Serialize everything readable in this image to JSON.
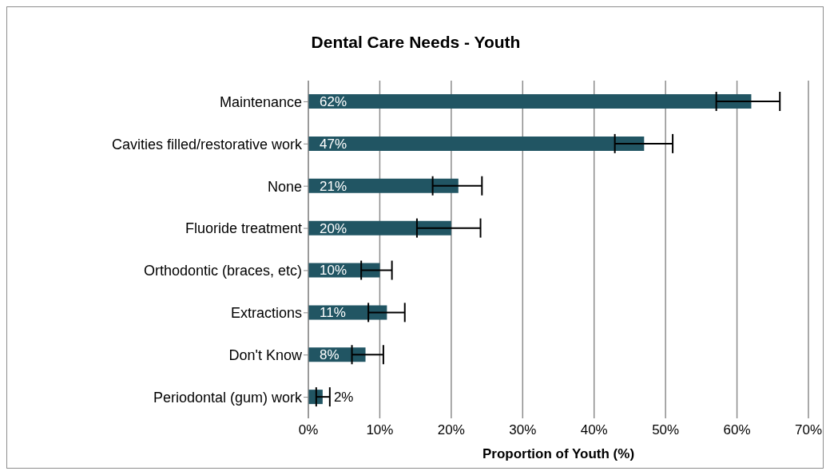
{
  "chart_data": {
    "type": "bar",
    "orientation": "horizontal",
    "title": "Dental Care Needs - Youth",
    "xlabel": "Proportion of Youth (%)",
    "categories": [
      "Maintenance",
      "Cavities filled/restorative work",
      "None",
      "Fluoride treatment",
      "Orthodontic (braces, etc)",
      "Extractions",
      "Don't Know",
      "Periodontal (gum) work"
    ],
    "values": [
      62,
      47,
      21,
      20,
      10,
      11,
      8,
      2
    ],
    "errors": [
      [
        57.1,
        66.0
      ],
      [
        42.9,
        51.0
      ],
      [
        17.4,
        24.3
      ],
      [
        15.2,
        24.1
      ],
      [
        7.4,
        11.7
      ],
      [
        8.4,
        13.5
      ],
      [
        6.1,
        10.5
      ],
      [
        1.1,
        3.0
      ]
    ],
    "value_labels": [
      "62%",
      "47%",
      "21%",
      "20%",
      "10%",
      "11%",
      "8%",
      "2%"
    ],
    "color": "#215563",
    "xlim": [
      0,
      70
    ],
    "xticks": [
      {
        "value": 0,
        "label": "0%"
      },
      {
        "value": 10,
        "label": "10%"
      },
      {
        "value": 20,
        "label": "20%"
      },
      {
        "value": 30,
        "label": "30%"
      },
      {
        "value": 40,
        "label": "40%"
      },
      {
        "value": 50,
        "label": "50%"
      },
      {
        "value": 60,
        "label": "60%"
      },
      {
        "value": 70,
        "label": "70%"
      }
    ],
    "grid": "x"
  }
}
